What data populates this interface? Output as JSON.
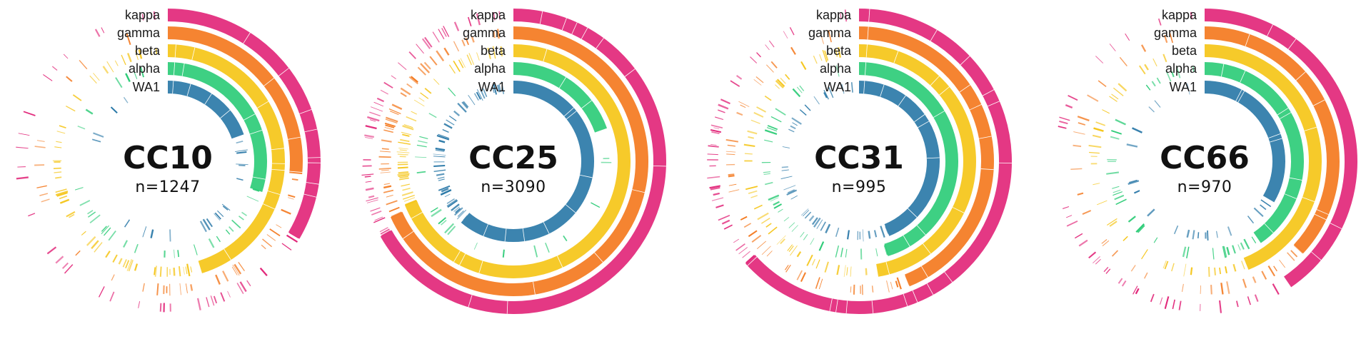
{
  "tracks": [
    {
      "key": "wa1",
      "label": "WA1",
      "color": "#2b79a8"
    },
    {
      "key": "alpha",
      "label": "alpha",
      "color": "#2ecc78"
    },
    {
      "key": "beta",
      "label": "beta",
      "color": "#f5c518"
    },
    {
      "key": "gamma",
      "label": "gamma",
      "color": "#f47a20"
    },
    {
      "key": "kappa",
      "label": "kappa",
      "color": "#e2277a"
    }
  ],
  "panels": [
    {
      "title": "CC10",
      "count_label": "n=1247",
      "coverage": {
        "wa1": 0.25,
        "alpha": 0.4,
        "beta": 0.62,
        "gamma": 0.35,
        "kappa": 0.45
      }
    },
    {
      "title": "CC25",
      "count_label": "n=3090",
      "coverage": {
        "wa1": 0.85,
        "alpha": 0.25,
        "beta": 0.96,
        "gamma": 0.95,
        "kappa": 0.93
      }
    },
    {
      "title": "CC31",
      "count_label": "n=995",
      "coverage": {
        "wa1": 0.6,
        "alpha": 0.62,
        "beta": 0.65,
        "gamma": 0.6,
        "kappa": 0.88
      }
    },
    {
      "title": "CC66",
      "count_label": "n=970",
      "coverage": {
        "wa1": 0.45,
        "alpha": 0.55,
        "beta": 0.6,
        "gamma": 0.5,
        "kappa": 0.55
      }
    }
  ]
}
